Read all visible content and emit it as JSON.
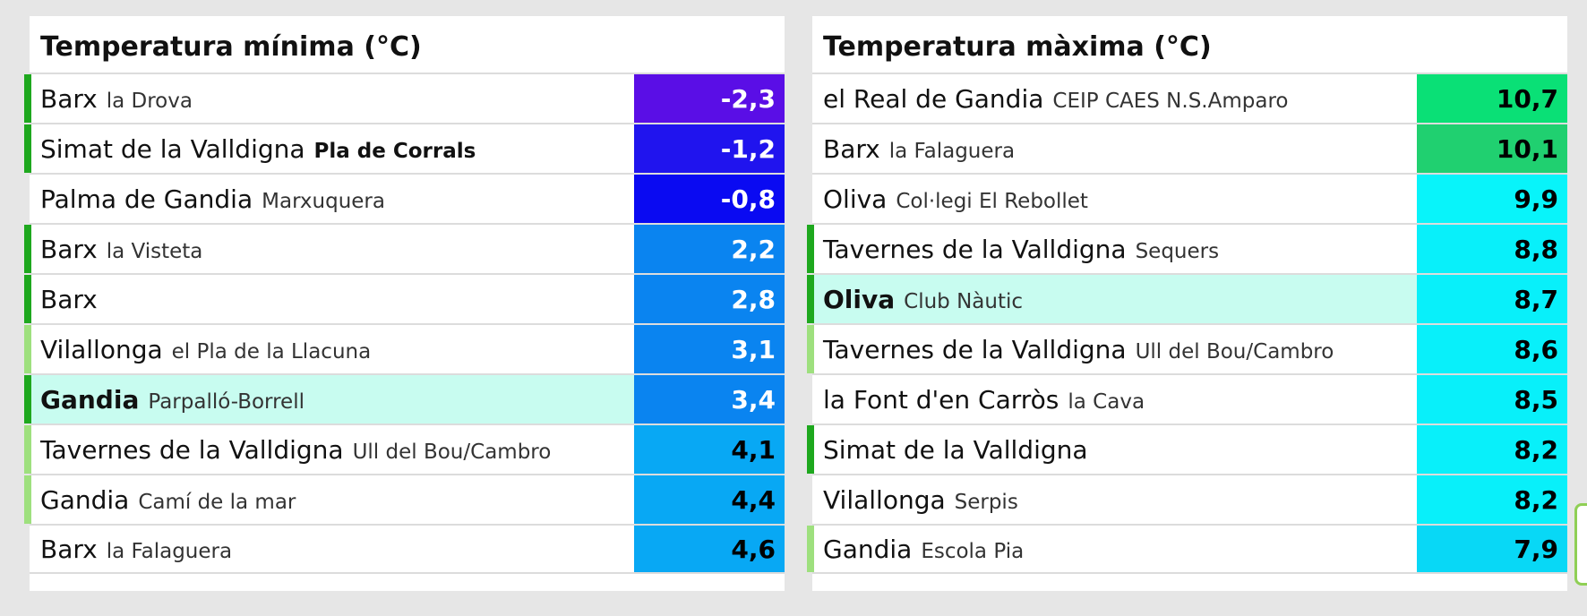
{
  "panels": [
    {
      "id": "min",
      "title": "Temperatura mínima (°C)",
      "rows": [
        {
          "town": "Barx",
          "station": "la Drova",
          "value": "-2,3",
          "bar": "#1ea81e",
          "bg": "#5a0ee6",
          "fg": "#ffffff",
          "town_bold": false,
          "station_bold": false,
          "highlight": false
        },
        {
          "town": "Simat de la Valldigna",
          "station": "Pla de Corrals",
          "value": "-1,2",
          "bar": "#1ea81e",
          "bg": "#2014ee",
          "fg": "#ffffff",
          "town_bold": false,
          "station_bold": true,
          "highlight": false
        },
        {
          "town": "Palma de Gandia",
          "station": "Marxuquera",
          "value": "-0,8",
          "bar": "",
          "bg": "#0a0af2",
          "fg": "#ffffff",
          "town_bold": false,
          "station_bold": false,
          "highlight": false
        },
        {
          "town": "Barx",
          "station": "la Visteta",
          "value": "2,2",
          "bar": "#1ea81e",
          "bg": "#0a84f0",
          "fg": "#ffffff",
          "town_bold": false,
          "station_bold": false,
          "highlight": false
        },
        {
          "town": "Barx",
          "station": "",
          "value": "2,8",
          "bar": "#1ea81e",
          "bg": "#0a84f0",
          "fg": "#ffffff",
          "town_bold": false,
          "station_bold": false,
          "highlight": false
        },
        {
          "town": "Vilallonga",
          "station": "el Pla de la Llacuna",
          "value": "3,1",
          "bar": "#9ee07e",
          "bg": "#0a84f0",
          "fg": "#ffffff",
          "town_bold": false,
          "station_bold": false,
          "highlight": false
        },
        {
          "town": "Gandia",
          "station": "Parpalló-Borrell",
          "value": "3,4",
          "bar": "#1ea81e",
          "bg": "#0a84f0",
          "fg": "#ffffff",
          "town_bold": true,
          "station_bold": false,
          "highlight": true
        },
        {
          "town": "Tavernes de la Valldigna",
          "station": "Ull del Bou/Cambro",
          "value": "4,1",
          "bar": "#9ee07e",
          "bg": "#08a8f4",
          "fg": "#000000",
          "town_bold": false,
          "station_bold": false,
          "highlight": false
        },
        {
          "town": "Gandia",
          "station": "Camí de la mar",
          "value": "4,4",
          "bar": "#9ee07e",
          "bg": "#08a8f4",
          "fg": "#000000",
          "town_bold": false,
          "station_bold": false,
          "highlight": false
        },
        {
          "town": "Barx",
          "station": "la Falaguera",
          "value": "4,6",
          "bar": "",
          "bg": "#08a8f4",
          "fg": "#000000",
          "town_bold": false,
          "station_bold": false,
          "highlight": false
        }
      ]
    },
    {
      "id": "max",
      "title": "Temperatura màxima (°C)",
      "rows": [
        {
          "town": "el Real de Gandia",
          "station": "CEIP CAES N.S.Amparo",
          "value": "10,7",
          "bar": "",
          "bg": "#0ae076",
          "fg": "#000000",
          "town_bold": false,
          "station_bold": false,
          "highlight": false
        },
        {
          "town": "Barx",
          "station": "la Falaguera",
          "value": "10,1",
          "bar": "",
          "bg": "#20d070",
          "fg": "#000000",
          "town_bold": false,
          "station_bold": false,
          "highlight": false
        },
        {
          "town": "Oliva",
          "station": "Col·legi El Rebollet",
          "value": "9,9",
          "bar": "",
          "bg": "#08f4fa",
          "fg": "#000000",
          "town_bold": false,
          "station_bold": false,
          "highlight": false
        },
        {
          "town": "Tavernes de la Valldigna",
          "station": "Sequers",
          "value": "8,8",
          "bar": "#1ea81e",
          "bg": "#08f0fa",
          "fg": "#000000",
          "town_bold": false,
          "station_bold": false,
          "highlight": false
        },
        {
          "town": "Oliva",
          "station": "Club Nàutic",
          "value": "8,7",
          "bar": "#1ea81e",
          "bg": "#08f0fa",
          "fg": "#000000",
          "town_bold": true,
          "station_bold": false,
          "highlight": true
        },
        {
          "town": "Tavernes de la Valldigna",
          "station": "Ull del Bou/Cambro",
          "value": "8,6",
          "bar": "#9ee07e",
          "bg": "#08f0fa",
          "fg": "#000000",
          "town_bold": false,
          "station_bold": false,
          "highlight": false
        },
        {
          "town": "la Font d'en Carròs",
          "station": "la Cava",
          "value": "8,5",
          "bar": "",
          "bg": "#08f0fa",
          "fg": "#000000",
          "town_bold": false,
          "station_bold": false,
          "highlight": false
        },
        {
          "town": "Simat de la Valldigna",
          "station": "",
          "value": "8,2",
          "bar": "#1ea81e",
          "bg": "#08f0fa",
          "fg": "#000000",
          "town_bold": false,
          "station_bold": false,
          "highlight": false
        },
        {
          "town": "Vilallonga",
          "station": "Serpis",
          "value": "8,2",
          "bar": "",
          "bg": "#08f0fa",
          "fg": "#000000",
          "town_bold": false,
          "station_bold": false,
          "highlight": false
        },
        {
          "town": "Gandia",
          "station": "Escola Pia",
          "value": "7,9",
          "bar": "#9ee07e",
          "bg": "#08d8f6",
          "fg": "#000000",
          "town_bold": false,
          "station_bold": false,
          "highlight": false
        }
      ]
    }
  ]
}
